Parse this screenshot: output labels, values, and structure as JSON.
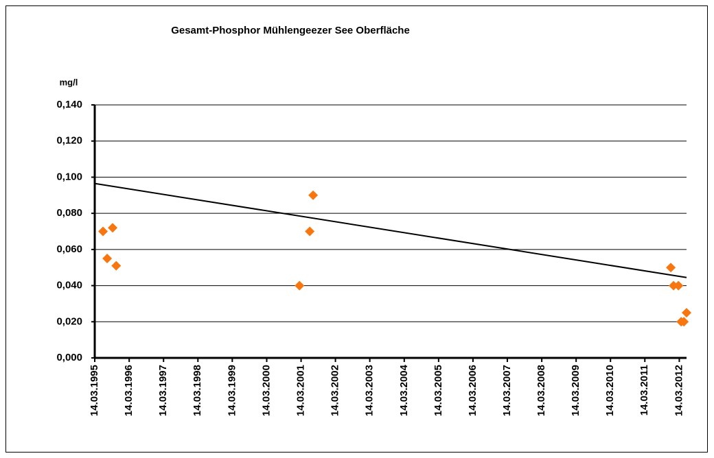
{
  "chart_data": {
    "type": "scatter",
    "title": "Gesamt-Phosphor Mühlengeezer See Oberfläche",
    "y_label": "mg/l",
    "x": [
      "10.06.1995",
      "24.07.1995",
      "20.09.1995",
      "28.10.1995",
      "25.02.2001",
      "14.06.2001",
      "20.07.2001",
      "15.12.2011",
      "13.01.2012",
      "05.03.2012",
      "03.04.2012",
      "02.05.2012",
      "30.05.2012"
    ],
    "values": [
      0.07,
      0.055,
      0.072,
      0.051,
      0.04,
      0.07,
      0.09,
      0.05,
      0.04,
      0.04,
      0.02,
      0.02,
      0.025
    ],
    "color": "#f7760f",
    "trendline": {
      "color": "#000000",
      "x": [
        "14.03.1995",
        "30.05.2012"
      ],
      "values": [
        0.0965,
        0.0445
      ]
    },
    "xlim": [
      "14.03.1995",
      "30.05.2012"
    ],
    "xticks": [
      "14.03.1995",
      "14.03.1996",
      "14.03.1997",
      "14.03.1998",
      "14.03.1999",
      "14.03.2000",
      "14.03.2001",
      "14.03.2002",
      "14.03.2003",
      "14.03.2004",
      "14.03.2005",
      "14.03.2006",
      "14.03.2007",
      "14.03.2008",
      "14.03.2009",
      "14.03.2010",
      "14.03.2011",
      "14.03.2012"
    ],
    "ylim": [
      0,
      0.14
    ],
    "yticks": [
      {
        "value": 0,
        "label": "0,000"
      },
      {
        "value": 0.02,
        "label": "0,020"
      },
      {
        "value": 0.04,
        "label": "0,040"
      },
      {
        "value": 0.06,
        "label": "0,060"
      },
      {
        "value": 0.08,
        "label": "0,080"
      },
      {
        "value": 0.1,
        "label": "0,100"
      },
      {
        "value": 0.12,
        "label": "0,120"
      },
      {
        "value": 0.14,
        "label": "0,140"
      }
    ],
    "grid": true
  }
}
